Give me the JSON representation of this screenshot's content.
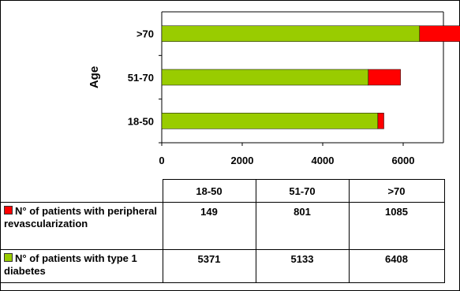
{
  "chart_data": {
    "type": "bar",
    "orientation": "horizontal",
    "stacked": true,
    "categories": [
      "18-50",
      "51-70",
      ">70"
    ],
    "series": [
      {
        "name": "N° of patients with type 1 diabetes",
        "values": [
          5371,
          5133,
          6408
        ],
        "color": "#99cc00"
      },
      {
        "name": "N° of patients with peripheral revascularization",
        "values": [
          149,
          801,
          1085
        ],
        "color": "#ff0000"
      }
    ],
    "ylabel": "Age",
    "xlim": [
      0,
      7000
    ],
    "x_ticks": [
      0,
      2000,
      4000,
      6000
    ],
    "grid": false,
    "legend": "data table below chart",
    "table": {
      "header": [
        "18-50",
        "51-70",
        ">70"
      ],
      "rows": [
        {
          "label": "N° of patients with peripheral revascularization",
          "color": "#ff0000",
          "values": [
            "149",
            "801",
            "1085"
          ]
        },
        {
          "label": "N° of patients with type 1 diabetes",
          "color": "#99cc00",
          "values": [
            "5371",
            "5133",
            "6408"
          ]
        }
      ]
    }
  }
}
